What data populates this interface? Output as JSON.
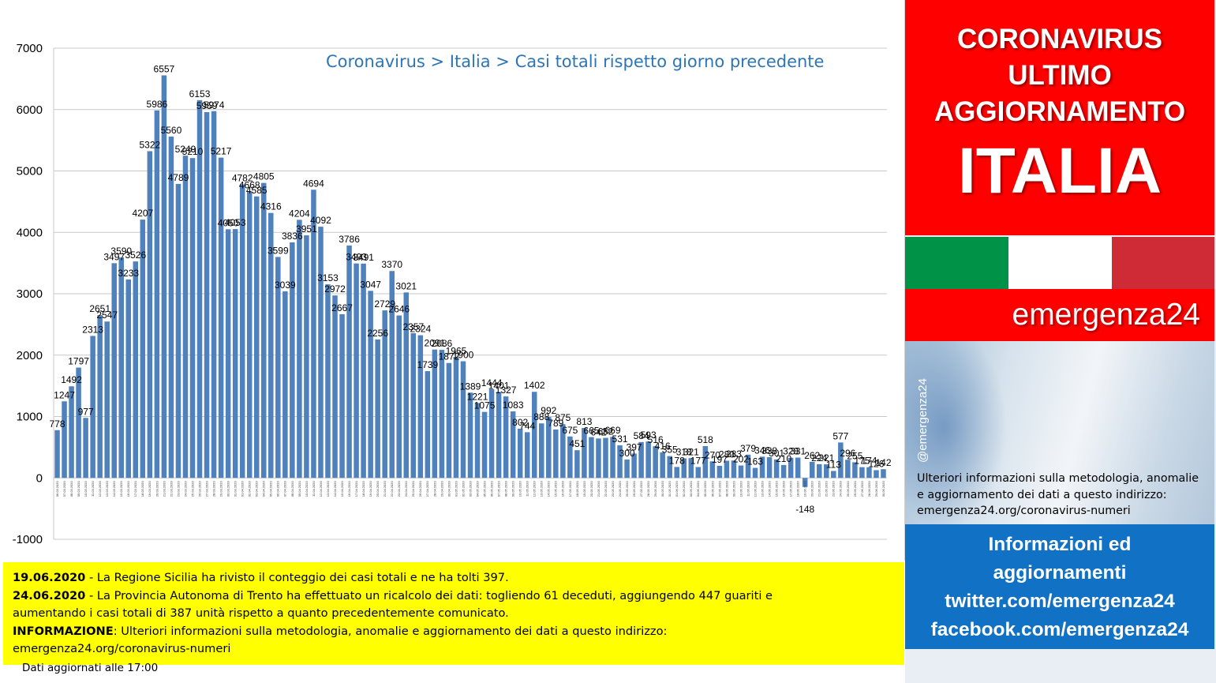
{
  "chart_data": {
    "type": "bar",
    "title": "Coronavirus > Italia > Casi totali rispetto giorno precedente",
    "xlabel": "",
    "ylabel": "",
    "ylim": [
      -1000,
      7000
    ],
    "yticks": [
      -1000,
      0,
      1000,
      2000,
      3000,
      4000,
      5000,
      6000,
      7000
    ],
    "grid": true,
    "bar_color": "#4f81bd",
    "categories": [
      "06.03.2020",
      "07.03.2020",
      "08.03.2020",
      "09.03.2020",
      "10.03.2020",
      "11.03.2020",
      "12.03.2020",
      "13.03.2020",
      "14.03.2020",
      "15.03.2020",
      "16.03.2020",
      "17.03.2020",
      "18.03.2020",
      "19.03.2020",
      "20.03.2020",
      "21.03.2020",
      "22.03.2020",
      "23.03.2020",
      "24.03.2020",
      "25.03.2020",
      "26.03.2020",
      "27.03.2020",
      "28.03.2020",
      "29.03.2020",
      "30.03.2020",
      "31.03.2020",
      "01.04.2020",
      "02.04.2020",
      "03.04.2020",
      "04.04.2020",
      "05.04.2020",
      "06.04.2020",
      "07.04.2020",
      "08.04.2020",
      "09.04.2020",
      "10.04.2020",
      "11.04.2020",
      "12.04.2020",
      "13.04.2020",
      "14.04.2020",
      "15.04.2020",
      "16.04.2020",
      "17.04.2020",
      "18.04.2020",
      "19.04.2020",
      "20.04.2020",
      "21.04.2020",
      "22.04.2020",
      "23.04.2020",
      "24.04.2020",
      "25.04.2020",
      "26.04.2020",
      "27.04.2020",
      "28.04.2020",
      "29.04.2020",
      "30.04.2020",
      "01.05.2020",
      "02.05.2020",
      "03.05.2020",
      "04.05.2020",
      "05.05.2020",
      "06.05.2020",
      "07.05.2020",
      "08.05.2020",
      "09.05.2020",
      "10.05.2020",
      "11.05.2020",
      "12.05.2020",
      "13.05.2020",
      "14.05.2020",
      "15.05.2020",
      "16.05.2020",
      "17.05.2020",
      "18.05.2020",
      "19.05.2020",
      "20.05.2020",
      "21.05.2020",
      "22.05.2020",
      "23.05.2020",
      "24.05.2020",
      "25.05.2020",
      "26.05.2020",
      "27.05.2020",
      "28.05.2020",
      "29.05.2020",
      "30.05.2020",
      "31.05.2020",
      "01.06.2020",
      "02.06.2020",
      "03.06.2020",
      "04.06.2020",
      "05.06.2020",
      "06.06.2020",
      "07.06.2020",
      "08.06.2020",
      "09.06.2020",
      "10.06.2020",
      "11.06.2020",
      "12.06.2020",
      "13.06.2020",
      "14.06.2020",
      "15.06.2020",
      "16.06.2020",
      "17.06.2020",
      "18.06.2020",
      "19.06.2020",
      "20.06.2020",
      "21.06.2020",
      "22.06.2020",
      "23.06.2020",
      "24.06.2020",
      "25.06.2020",
      "26.06.2020",
      "27.06.2020",
      "28.06.2020",
      "29.06.2020",
      "30.06.2020"
    ],
    "values": [
      778,
      1247,
      1492,
      1797,
      977,
      2313,
      2651,
      2547,
      3497,
      3590,
      3233,
      3526,
      4207,
      5322,
      5986,
      6557,
      5560,
      4789,
      5249,
      5210,
      6153,
      5959,
      5974,
      5217,
      4050,
      4053,
      4782,
      4668,
      4585,
      4805,
      4316,
      3599,
      3039,
      3836,
      4204,
      3951,
      4694,
      4092,
      3153,
      2972,
      2667,
      3786,
      3493,
      3491,
      3047,
      2256,
      2729,
      3370,
      2646,
      3021,
      2357,
      2324,
      1739,
      2091,
      2086,
      1872,
      1965,
      1900,
      1389,
      1221,
      1075,
      1444,
      1401,
      1327,
      1083,
      802,
      744,
      1402,
      888,
      992,
      789,
      875,
      675,
      451,
      813,
      665,
      642,
      652,
      669,
      531,
      300,
      397,
      584,
      593,
      516,
      416,
      355,
      178,
      318,
      321,
      177,
      518,
      270,
      197,
      280,
      283,
      202,
      379,
      163,
      346,
      338,
      301,
      210,
      328,
      331,
      -148,
      262,
      224,
      221,
      113,
      577,
      296,
      255,
      175,
      174,
      126,
      142
    ]
  },
  "notes": {
    "line1_date": "19.06.2020",
    "line1_text": " - La Regione  Sicilia  ha rivisto il conteggio  dei casi totali e ne ha tolti 397.",
    "line2_date": "24.06.2020",
    "line2_text": " - La Provincia Autonoma di Trento ha effettuato un ricalcolo dei dati:  togliendo  61 deceduti,  aggiungendo  447 guariti e",
    "line3_text": "aumentando  i casi totali  di 387 unità rispetto a quanto precedentemente  comunicato.",
    "line4_label": "INFORMAZIONE",
    "line4_text": ":  Ulteriori informazioni sulla metodologia,  anomalie e aggiornamento dei dati a questo indirizzo:",
    "line5_text": "emergenza24.org/coronavirus-numeri"
  },
  "side": {
    "header_line1": "CORONAVIRUS",
    "header_line2": "ULTIMO",
    "header_line3": "AGGIORNAMENTO",
    "header_country": "ITALIA",
    "flag_colors": [
      "#009246",
      "#ffffff",
      "#ce2b37"
    ],
    "brand": "emergenza24",
    "handle": "@emergenza24",
    "method_line1": "Ulteriori informazioni sulla metodologia, anomalie",
    "method_line2": "e aggiornamento dei dati a questo indirizzo:",
    "method_line3": "emergenza24.org/coronavirus-numeri",
    "info_line1": "Informazioni ed",
    "info_line2": "aggiornamenti",
    "info_line3": "twitter.com/emergenza24",
    "info_line4": "facebook.com/emergenza24",
    "updated": "Dati aggiornati alle 17:00"
  }
}
